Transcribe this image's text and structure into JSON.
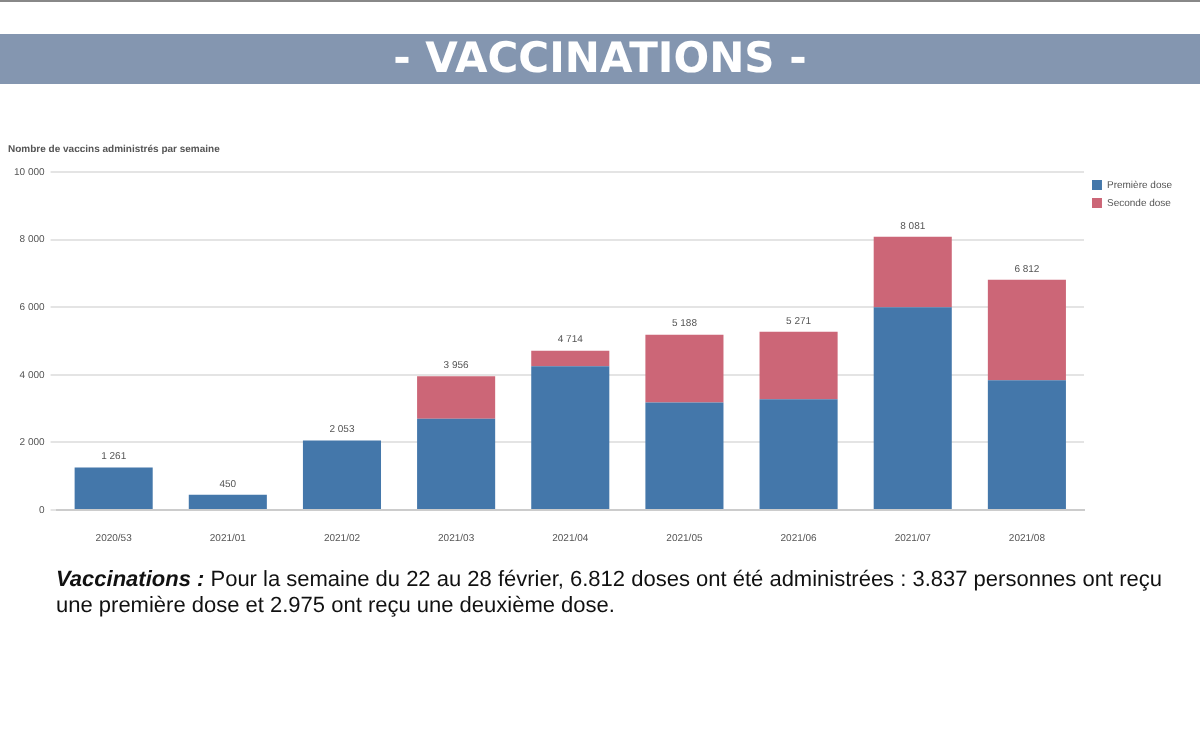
{
  "chart_data": {
    "type": "bar",
    "stacked": true,
    "title": "- VACCINATIONS -",
    "subtitle": "Nombre de vaccins administrés par semaine",
    "categories": [
      "2020/53",
      "2021/01",
      "2021/02",
      "2021/03",
      "2021/04",
      "2021/05",
      "2021/06",
      "2021/07",
      "2021/08"
    ],
    "series": [
      {
        "name": "Première dose",
        "color": "#4477aa",
        "values": [
          1261,
          450,
          2053,
          2700,
          4250,
          3180,
          3280,
          6000,
          3837
        ]
      },
      {
        "name": "Seconde dose",
        "color": "#cc6677",
        "values": [
          null,
          null,
          null,
          1256,
          464,
          2008,
          1991,
          2081,
          2975
        ]
      }
    ],
    "totals": [
      "1 261",
      "450",
      "2 053",
      "3 956",
      "4 714",
      "5 188",
      "5 271",
      "8 081",
      "6 812"
    ],
    "ylim": [
      0,
      10000
    ],
    "yticks": [
      0,
      {
        "value": 2000,
        "label": "2 000"
      },
      {
        "value": 4000,
        "label": "4 000"
      },
      {
        "value": 6000,
        "label": "6 000"
      },
      {
        "value": 8000,
        "label": "8 000"
      },
      {
        "value": 10000,
        "label": "10 000"
      }
    ],
    "grid": "y",
    "legend": "top right",
    "annotations": [
      "Vaccinations :",
      "Pour la semaine du 22 au 28 février, 6.812 doses ont été administrées : 3.837 personnes ont reçu une première dose et 2.975 ont reçu une deuxième dose."
    ]
  }
}
